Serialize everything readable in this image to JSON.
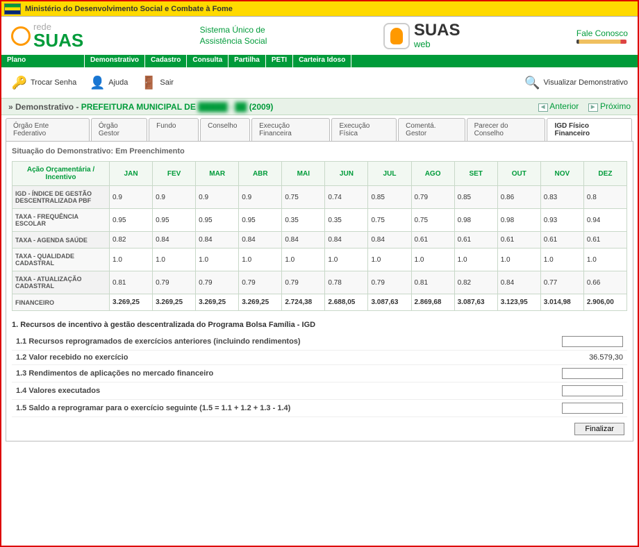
{
  "ministry_label": "Ministério do Desenvolvimento Social e Combate à Fome",
  "logo": {
    "rede": "rede",
    "suas": "SUAS"
  },
  "system_title_l1": "Sistema Único de",
  "system_title_l2": "Assistência Social",
  "suasweb": {
    "big": "SUAS",
    "sm": "web"
  },
  "fale_conosco": "Fale Conosco",
  "menu": [
    "Plano",
    "Demonstrativo",
    "Cadastro",
    "Consulta",
    "Partilha",
    "PETI",
    "Carteira Idoso"
  ],
  "toolbar": {
    "trocar_senha": "Trocar Senha",
    "ajuda": "Ajuda",
    "sair": "Sair",
    "visualizar": "Visualizar Demonstrativo"
  },
  "breadcrumb": {
    "prefix": "» Demonstrativo - ",
    "entity_prefix": "PREFEITURA MUNICIPAL DE ",
    "entity_redacted": "█████ - ██",
    "year": " (2009)",
    "anterior": "Anterior",
    "proximo": "Próximo"
  },
  "tabs": [
    "Órgão Ente Federativo",
    "Órgão Gestor",
    "Fundo",
    "Conselho",
    "Execução Financeira",
    "Execução Física",
    "Comentá. Gestor",
    "Parecer do Conselho",
    "IGD Físico Financeiro"
  ],
  "active_tab_index": 8,
  "status_label": "Situação do Demonstrativo: Em Preenchimento",
  "table": {
    "corner": "Ação Orçamentária / Incentivo",
    "months": [
      "JAN",
      "FEV",
      "MAR",
      "ABR",
      "MAI",
      "JUN",
      "JUL",
      "AGO",
      "SET",
      "OUT",
      "NOV",
      "DEZ"
    ],
    "rows": [
      {
        "label": "IGD - ÍNDICE DE GESTÃO DESCENTRALIZADA PBF",
        "vals": [
          "0.9",
          "0.9",
          "0.9",
          "0.9",
          "0.75",
          "0.74",
          "0.85",
          "0.79",
          "0.85",
          "0.86",
          "0.83",
          "0.8"
        ]
      },
      {
        "label": "TAXA - FREQUÊNCIA ESCOLAR",
        "vals": [
          "0.95",
          "0.95",
          "0.95",
          "0.95",
          "0.35",
          "0.35",
          "0.75",
          "0.75",
          "0.98",
          "0.98",
          "0.93",
          "0.94"
        ]
      },
      {
        "label": "TAXA - AGENDA SAÚDE",
        "vals": [
          "0.82",
          "0.84",
          "0.84",
          "0.84",
          "0.84",
          "0.84",
          "0.84",
          "0.61",
          "0.61",
          "0.61",
          "0.61",
          "0.61"
        ]
      },
      {
        "label": "TAXA - QUALIDADE CADASTRAL",
        "vals": [
          "1.0",
          "1.0",
          "1.0",
          "1.0",
          "1.0",
          "1.0",
          "1.0",
          "1.0",
          "1.0",
          "1.0",
          "1.0",
          "1.0"
        ]
      },
      {
        "label": "TAXA - ATUALIZAÇÃO CADASTRAL",
        "vals": [
          "0.81",
          "0.79",
          "0.79",
          "0.79",
          "0.79",
          "0.78",
          "0.79",
          "0.81",
          "0.82",
          "0.84",
          "0.77",
          "0.66"
        ]
      },
      {
        "label": "FINANCEIRO",
        "vals": [
          "3.269,25",
          "3.269,25",
          "3.269,25",
          "3.269,25",
          "2.724,38",
          "2.688,05",
          "3.087,63",
          "2.869,68",
          "3.087,63",
          "3.123,95",
          "3.014,98",
          "2.906,00"
        ],
        "fin": true
      }
    ]
  },
  "section1": {
    "title": "1. Recursos de incentivo à gestão descentralizada do Programa Bolsa Família - IGD",
    "rows": [
      {
        "label": "1.1 Recursos reprogramados de exercícios anteriores (incluindo rendimentos)",
        "input": true,
        "value": ""
      },
      {
        "label": "1.2 Valor recebido no exercício",
        "input": false,
        "value": "36.579,30"
      },
      {
        "label": "1.3 Rendimentos de aplicações no mercado financeiro",
        "input": true,
        "value": ""
      },
      {
        "label": "1.4 Valores executados",
        "input": true,
        "value": ""
      },
      {
        "label": "1.5 Saldo a reprogramar para o exercício seguinte (1.5 = 1.1 + 1.2 + 1.3 - 1.4)",
        "input": true,
        "value": ""
      }
    ]
  },
  "finalize_btn": "Finalizar"
}
